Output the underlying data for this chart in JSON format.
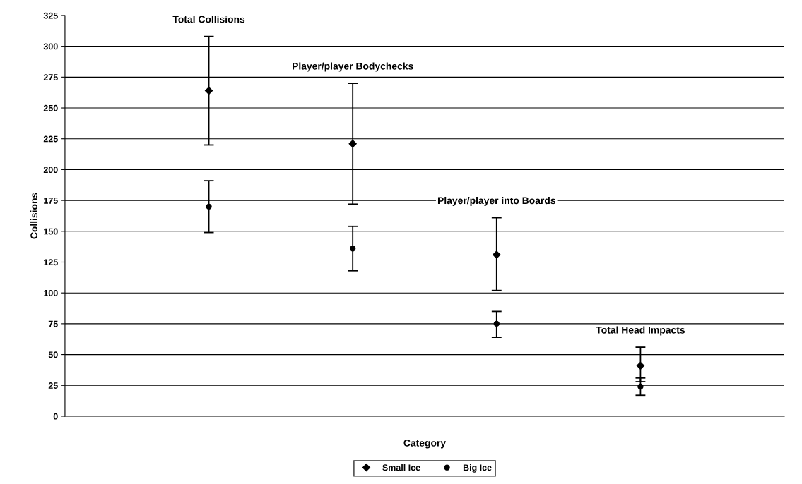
{
  "chart_data": {
    "type": "scatter",
    "xlabel": "Category",
    "ylabel": "Collisions",
    "categories": [
      null,
      null,
      null,
      null
    ],
    "annotations": [
      "Total Collisions",
      "Player/player Bodychecks",
      "Player/player into Boards",
      "Total Head Impacts"
    ],
    "series": [
      {
        "name": "Small Ice",
        "color": "#000000",
        "marker": "diamond",
        "values": [
          264,
          221,
          131,
          41
        ],
        "errors": [
          [
            220,
            308
          ],
          [
            172,
            270
          ],
          [
            102,
            161
          ],
          [
            28,
            56
          ]
        ]
      },
      {
        "name": "Big Ice",
        "color": "#000000",
        "marker": "circle",
        "values": [
          170,
          136,
          75,
          24
        ],
        "errors": [
          [
            149,
            191
          ],
          [
            118,
            154
          ],
          [
            64,
            85
          ],
          [
            17,
            31
          ]
        ]
      }
    ],
    "ylim": [
      0,
      325
    ],
    "yticks": [
      0,
      25,
      50,
      75,
      100,
      125,
      150,
      175,
      200,
      225,
      250,
      275,
      300,
      325
    ],
    "grid": "y",
    "legend": "bottom"
  }
}
